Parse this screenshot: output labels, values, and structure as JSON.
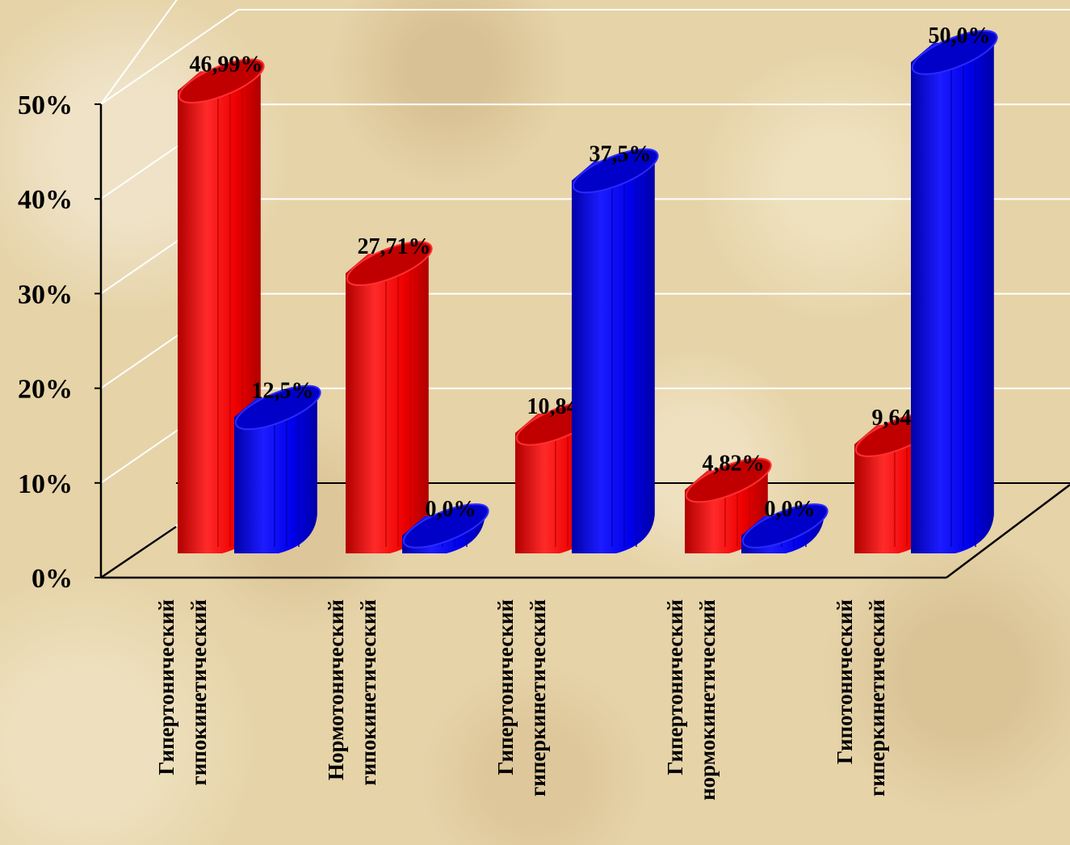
{
  "chart_data": {
    "type": "bar",
    "title": "",
    "xlabel": "",
    "ylabel": "",
    "ylim": [
      0,
      50
    ],
    "yticks": [
      "0%",
      "10%",
      "20%",
      "30%",
      "40%",
      "50%"
    ],
    "grid": true,
    "categories": [
      [
        "Гипертонический",
        "гипокинетический"
      ],
      [
        "Нормотонический",
        "гипокинетический"
      ],
      [
        "Гипертонический",
        "гиперкинетический"
      ],
      [
        "Гипертонический",
        "нормокинетический"
      ],
      [
        "Гипотонический",
        "гиперкинетический"
      ]
    ],
    "series": [
      {
        "color": "#ff0000",
        "values": [
          46.99,
          27.71,
          10.84,
          4.82,
          9.64
        ],
        "labels": [
          "46,99%",
          "27,71%",
          "10,84%",
          "4,82%",
          "9,64%"
        ]
      },
      {
        "color": "#0000ff",
        "values": [
          12.5,
          0.0,
          37.5,
          0.0,
          50.0
        ],
        "labels": [
          "12,5%",
          "0,0%",
          "37,5%",
          "0,0%",
          "50,0%"
        ]
      }
    ]
  }
}
